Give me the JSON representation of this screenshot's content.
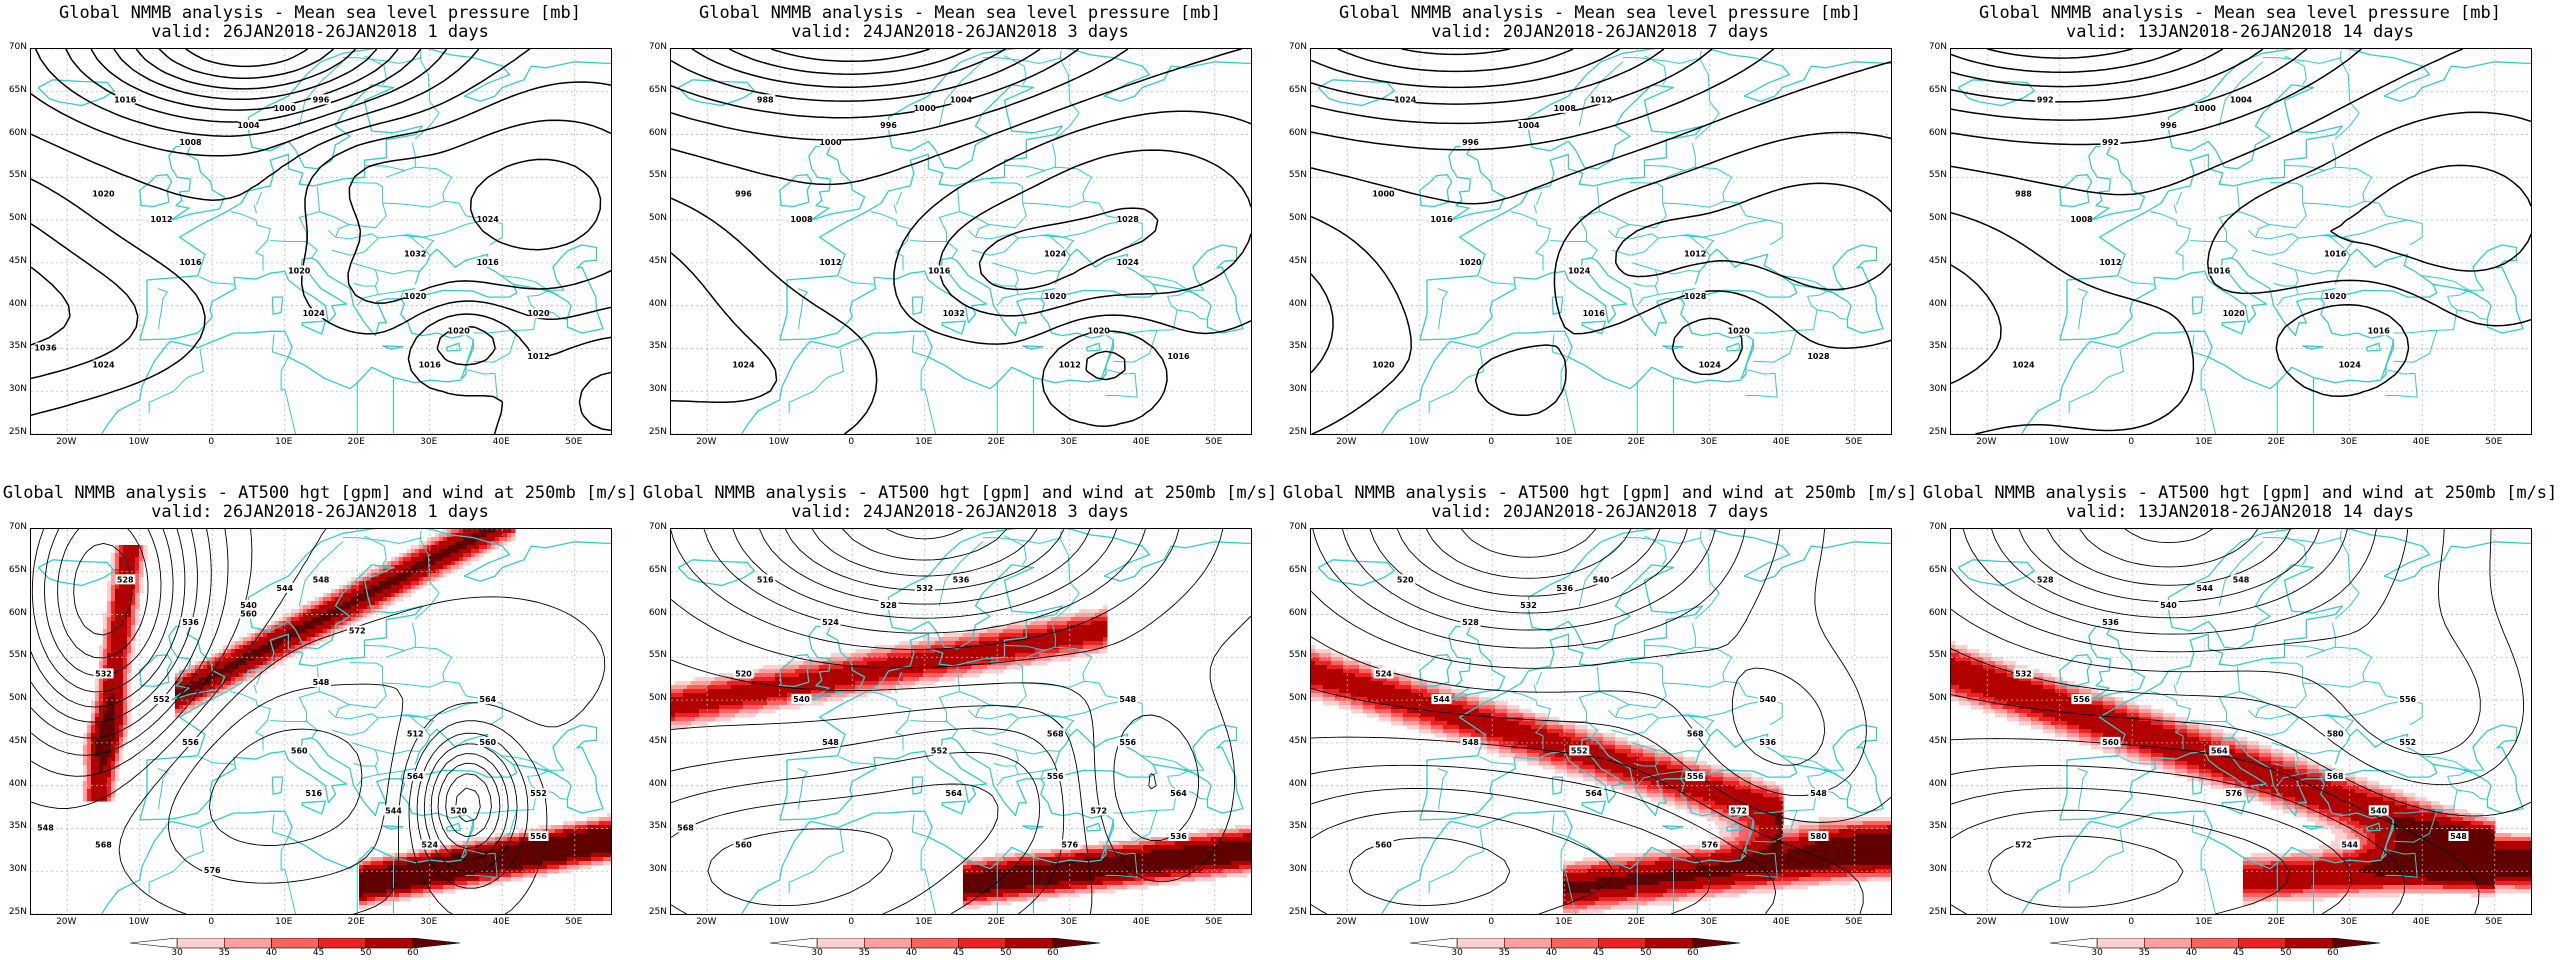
{
  "panels": [
    {
      "row": 0,
      "col": 0,
      "title": "Global NMMB analysis - Mean sea level pressure [mb]",
      "valid": "valid: 26JAN2018-26JAN2018   1 days",
      "type": "mslp"
    },
    {
      "row": 0,
      "col": 1,
      "title": "Global NMMB analysis - Mean sea level pressure [mb]",
      "valid": "valid: 24JAN2018-26JAN2018   3 days",
      "type": "mslp"
    },
    {
      "row": 0,
      "col": 2,
      "title": "Global NMMB analysis - Mean sea level pressure [mb]",
      "valid": "valid: 20JAN2018-26JAN2018   7 days",
      "type": "mslp"
    },
    {
      "row": 0,
      "col": 3,
      "title": "Global NMMB analysis - Mean sea level pressure [mb]",
      "valid": "valid: 13JAN2018-26JAN2018  14 days",
      "type": "mslp"
    },
    {
      "row": 1,
      "col": 0,
      "title": "Global NMMB analysis - AT500 hgt [gpm] and wind at 250mb [m/s]",
      "valid": "valid: 26JAN2018-26JAN2018   1 days",
      "type": "z500"
    },
    {
      "row": 1,
      "col": 1,
      "title": "Global NMMB analysis - AT500 hgt [gpm] and wind at 250mb [m/s]",
      "valid": "valid: 24JAN2018-26JAN2018   3 days",
      "type": "z500"
    },
    {
      "row": 1,
      "col": 2,
      "title": "Global NMMB analysis - AT500 hgt [gpm] and wind at 250mb [m/s]",
      "valid": "valid: 20JAN2018-26JAN2018   7 days",
      "type": "z500"
    },
    {
      "row": 1,
      "col": 3,
      "title": "Global NMMB analysis - AT500 hgt [gpm] and wind at 250mb [m/s]",
      "valid": "valid: 13JAN2018-26JAN2018  14 days",
      "type": "z500"
    }
  ],
  "lat_labels": [
    "70N",
    "65N",
    "60N",
    "55N",
    "50N",
    "45N",
    "40N",
    "35N",
    "30N",
    "25N"
  ],
  "lon_labels": [
    "20W",
    "10W",
    "0",
    "10E",
    "20E",
    "30E",
    "40E",
    "50E"
  ],
  "lon_values": [
    -20,
    -10,
    0,
    10,
    20,
    30,
    40,
    50
  ],
  "lat_values": [
    70,
    65,
    60,
    55,
    50,
    45,
    40,
    35,
    30,
    25
  ],
  "map_extent": {
    "lon_min": -25,
    "lon_max": 55,
    "lat_min": 25,
    "lat_max": 70
  },
  "colorbar_labels": [
    "30",
    "35",
    "40",
    "45",
    "50",
    "60"
  ],
  "colorbar_colors": [
    "#ffffff",
    "#ffd0d0",
    "#ffa0a0",
    "#ff6060",
    "#ee2020",
    "#b00000",
    "#600000"
  ],
  "colors": {
    "coast": "#33cccc",
    "contour": "#000000",
    "grid": "#bbbbbb"
  },
  "mslp_labels": [
    [
      "1016",
      "1020",
      "1008",
      "1004",
      "1000",
      "996",
      "1012",
      "1016",
      "1020",
      "1020",
      "1024",
      "1024",
      "1032",
      "1020",
      "1016",
      "1012",
      "1016",
      "1024",
      "1020",
      "1036"
    ],
    [
      "988",
      "996",
      "1000",
      "996",
      "1000",
      "1004",
      "1008",
      "1012",
      "1016",
      "1020",
      "1024",
      "1032",
      "1024",
      "1020",
      "1012",
      "1016",
      "1024",
      "1028"
    ],
    [
      "1024",
      "1000",
      "996",
      "1004",
      "1008",
      "1012",
      "1016",
      "1020",
      "1024",
      "1028",
      "1020",
      "1016",
      "1012",
      "1020",
      "1024",
      "1028"
    ],
    [
      "992",
      "988",
      "992",
      "996",
      "1000",
      "1004",
      "1008",
      "1012",
      "1016",
      "1020",
      "1024",
      "1020",
      "1016",
      "1016",
      "1024"
    ]
  ],
  "z500_labels": [
    [
      "528",
      "532",
      "536",
      "540",
      "544",
      "548",
      "552",
      "556",
      "560",
      "564",
      "568",
      "516",
      "512",
      "520",
      "524",
      "556",
      "560",
      "564",
      "552",
      "548",
      "572",
      "576",
      "560",
      "544",
      "548"
    ],
    [
      "516",
      "520",
      "524",
      "528",
      "532",
      "536",
      "540",
      "548",
      "552",
      "556",
      "560",
      "564",
      "568",
      "572",
      "576",
      "536",
      "556",
      "548",
      "564",
      "568"
    ],
    [
      "520",
      "524",
      "528",
      "532",
      "536",
      "540",
      "544",
      "548",
      "552",
      "556",
      "560",
      "564",
      "568",
      "572",
      "576",
      "580",
      "536",
      "540",
      "548"
    ],
    [
      "528",
      "532",
      "536",
      "540",
      "544",
      "548",
      "556",
      "560",
      "564",
      "568",
      "572",
      "576",
      "580",
      "540",
      "544",
      "548",
      "552",
      "556"
    ]
  ]
}
